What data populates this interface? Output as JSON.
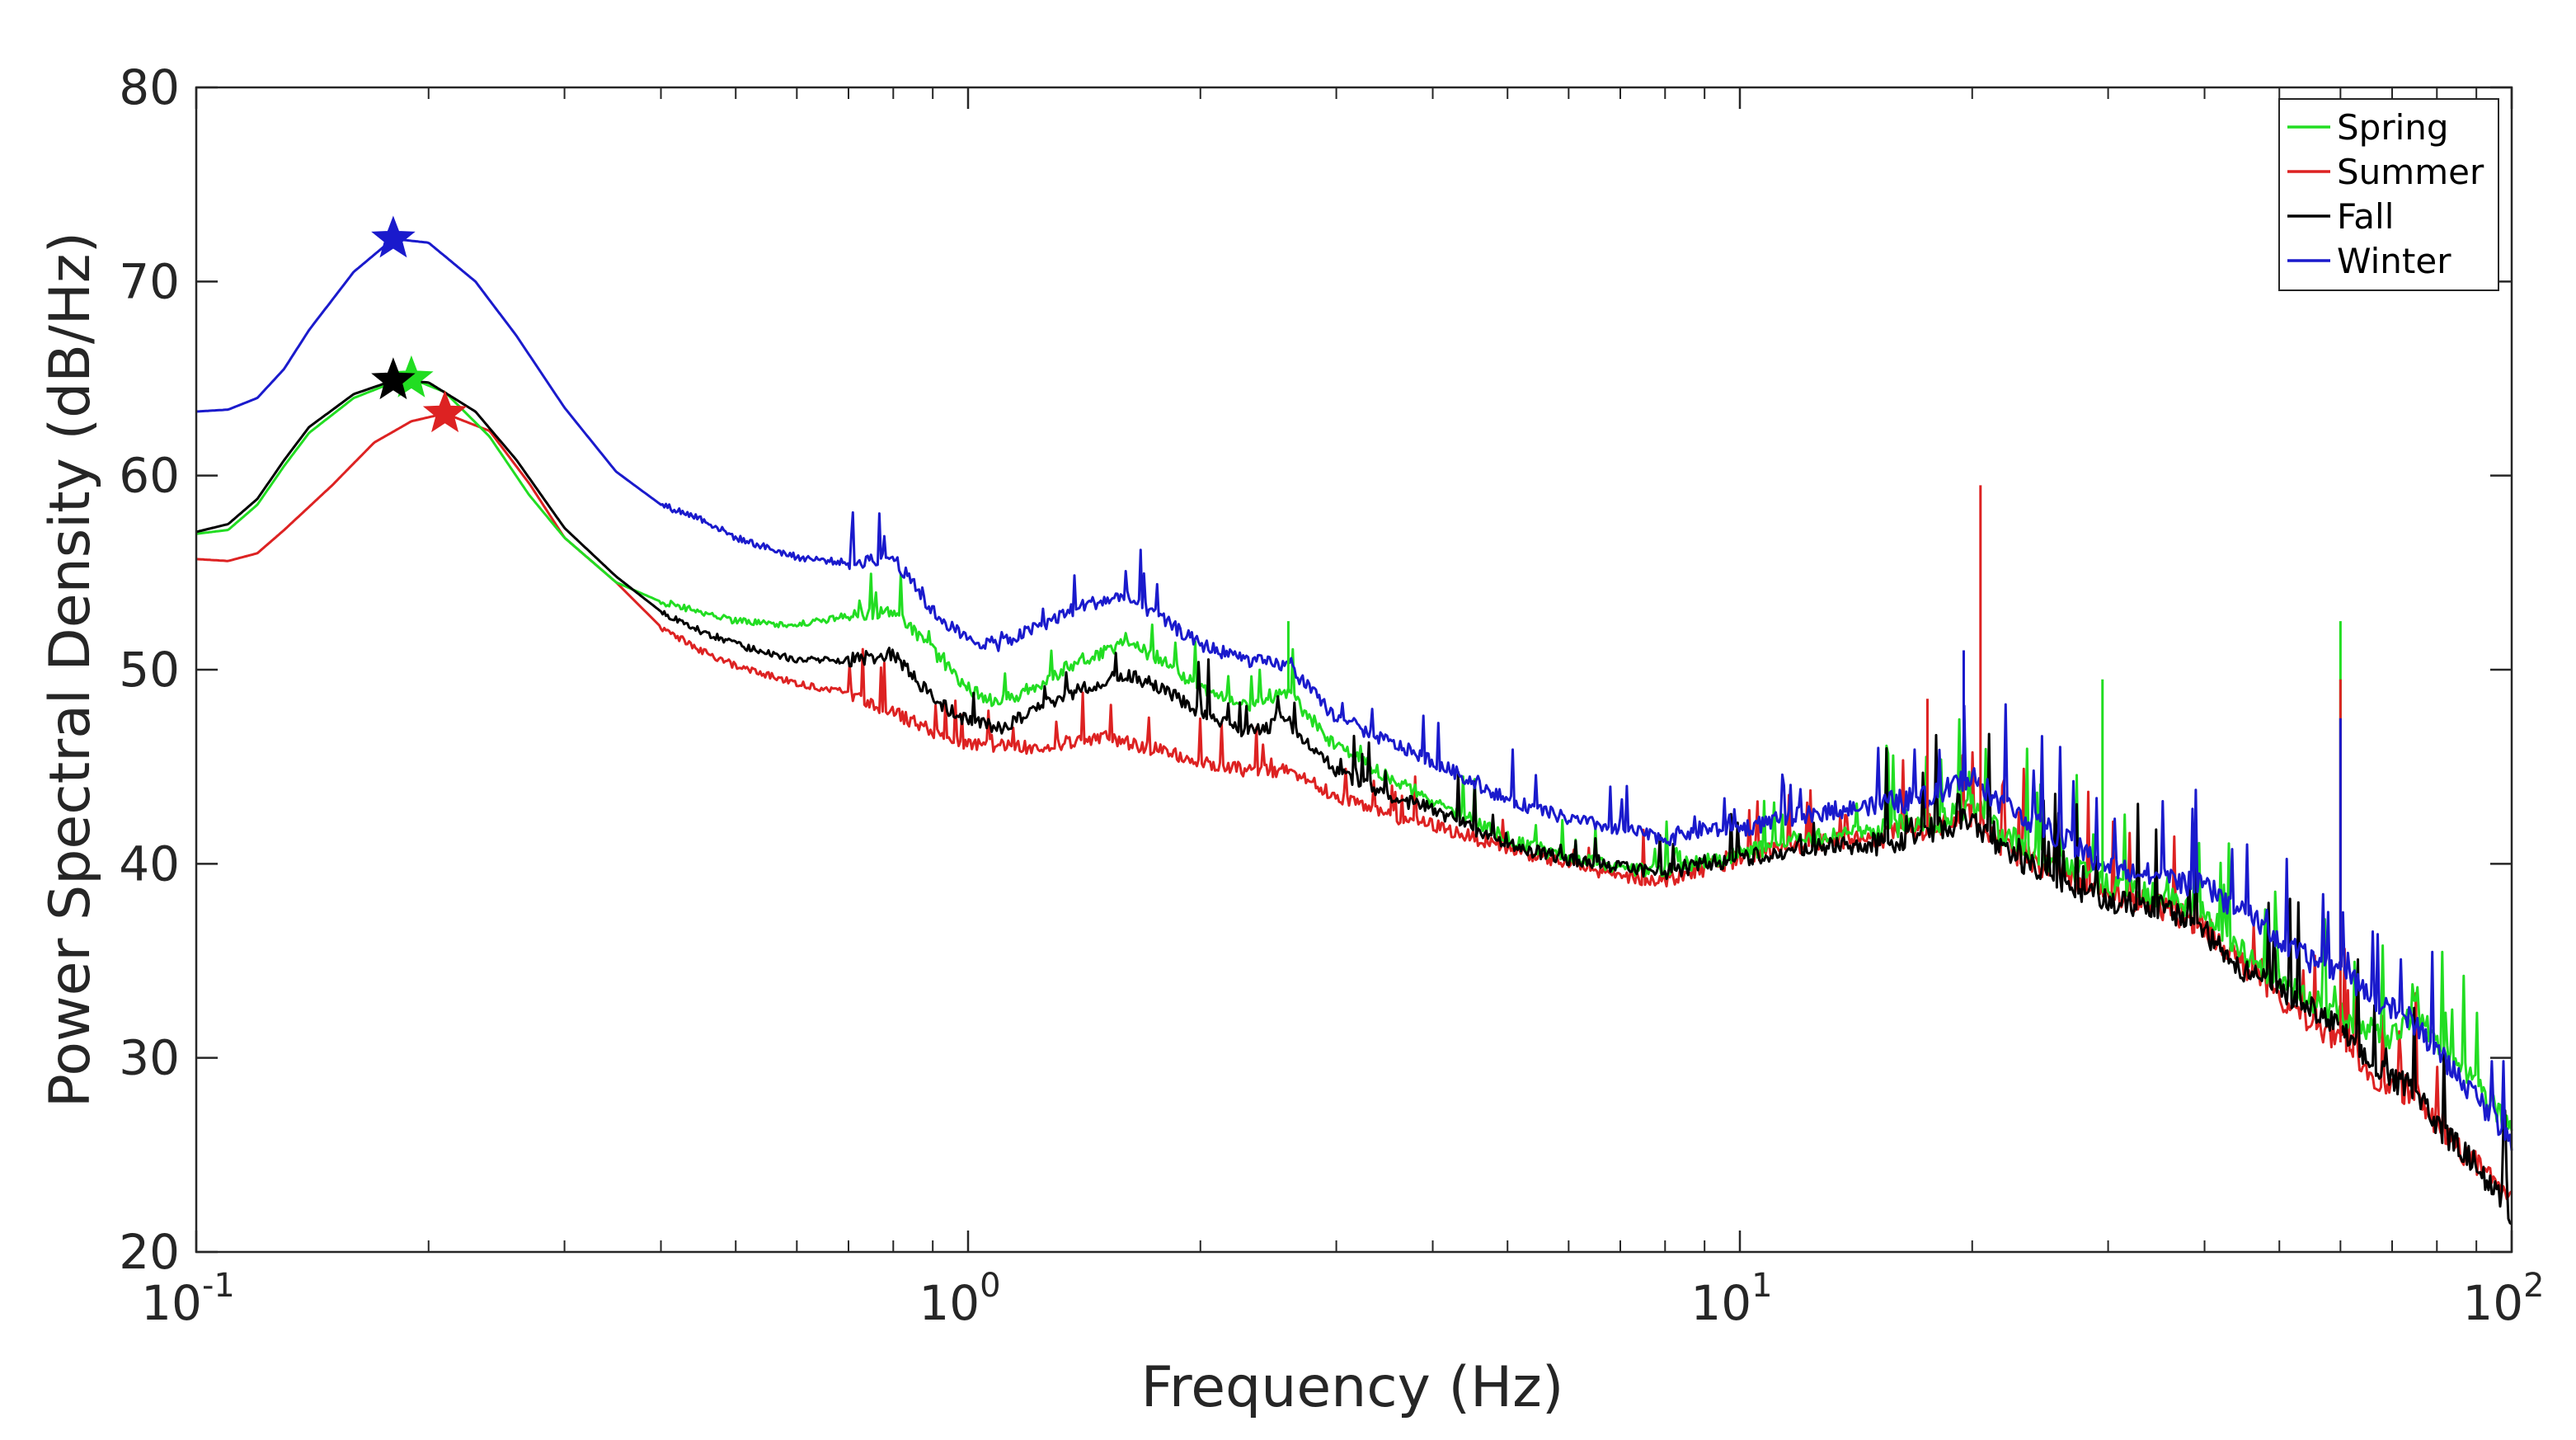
{
  "chart_data": {
    "type": "line",
    "xscale": "log",
    "xlabel": "Frequency (Hz)",
    "ylabel": "Power Spectral Density (dB/Hz)",
    "xlim": [
      0.1,
      100
    ],
    "ylim": [
      20,
      80
    ],
    "x_ticks": [
      {
        "value": 0.1,
        "base": "10",
        "exp": "-1"
      },
      {
        "value": 1,
        "base": "10",
        "exp": "0"
      },
      {
        "value": 10,
        "base": "10",
        "exp": "1"
      },
      {
        "value": 100,
        "base": "10",
        "exp": "2"
      }
    ],
    "y_ticks": [
      20,
      30,
      40,
      50,
      60,
      70,
      80
    ],
    "legend": {
      "position": "top-right"
    },
    "series": [
      {
        "name": "Spring",
        "color": "#22dd22",
        "peak": {
          "x": 0.19,
          "y": 65.0
        },
        "points": [
          [
            0.1,
            57.0
          ],
          [
            0.11,
            57.2
          ],
          [
            0.12,
            58.5
          ],
          [
            0.13,
            60.5
          ],
          [
            0.14,
            62.2
          ],
          [
            0.16,
            64.0
          ],
          [
            0.18,
            64.8
          ],
          [
            0.19,
            65.0
          ],
          [
            0.21,
            64.3
          ],
          [
            0.24,
            62.0
          ],
          [
            0.27,
            59.0
          ],
          [
            0.3,
            56.8
          ],
          [
            0.35,
            54.5
          ],
          [
            0.4,
            53.5
          ],
          [
            0.45,
            53.0
          ],
          [
            0.5,
            52.5
          ],
          [
            0.6,
            52.3
          ],
          [
            0.7,
            52.8
          ],
          [
            0.8,
            53.0
          ],
          [
            0.9,
            51.0
          ],
          [
            1.0,
            49.0
          ],
          [
            1.1,
            48.3
          ],
          [
            1.2,
            49.0
          ],
          [
            1.4,
            50.5
          ],
          [
            1.6,
            51.3
          ],
          [
            1.8,
            50.5
          ],
          [
            2.0,
            49.0
          ],
          [
            2.3,
            48.2
          ],
          [
            2.6,
            48.8
          ],
          [
            3.0,
            46.0
          ],
          [
            3.5,
            44.5
          ],
          [
            4.0,
            43.3
          ],
          [
            5.0,
            41.3
          ],
          [
            6.0,
            40.3
          ],
          [
            7.0,
            39.8
          ],
          [
            8.0,
            39.6
          ],
          [
            9.0,
            40.2
          ],
          [
            10.0,
            40.5
          ],
          [
            12.0,
            41.3
          ],
          [
            15.0,
            41.8
          ],
          [
            18.0,
            42.2
          ],
          [
            20.0,
            43.0
          ],
          [
            22.0,
            41.5
          ],
          [
            25.0,
            40.3
          ],
          [
            28.0,
            39.5
          ],
          [
            30.0,
            38.8
          ],
          [
            35.0,
            38.3
          ],
          [
            40.0,
            37.5
          ],
          [
            45.0,
            35.5
          ],
          [
            50.0,
            33.8
          ],
          [
            55.0,
            33.0
          ],
          [
            60.0,
            32.3
          ],
          [
            65.0,
            31.5
          ],
          [
            70.0,
            31.0
          ],
          [
            75.0,
            32.5
          ],
          [
            80.0,
            30.8
          ],
          [
            90.0,
            28.5
          ],
          [
            100.0,
            26.5
          ]
        ]
      },
      {
        "name": "Summer",
        "color": "#dd2222",
        "peak": {
          "x": 0.21,
          "y": 63.2
        },
        "points": [
          [
            0.1,
            55.7
          ],
          [
            0.11,
            55.6
          ],
          [
            0.12,
            56.0
          ],
          [
            0.13,
            57.2
          ],
          [
            0.15,
            59.5
          ],
          [
            0.17,
            61.7
          ],
          [
            0.19,
            62.8
          ],
          [
            0.21,
            63.2
          ],
          [
            0.24,
            62.3
          ],
          [
            0.27,
            59.6
          ],
          [
            0.3,
            56.8
          ],
          [
            0.35,
            54.5
          ],
          [
            0.4,
            52.2
          ],
          [
            0.45,
            51.0
          ],
          [
            0.5,
            50.2
          ],
          [
            0.6,
            49.3
          ],
          [
            0.7,
            48.8
          ],
          [
            0.8,
            47.8
          ],
          [
            0.9,
            46.8
          ],
          [
            1.0,
            46.2
          ],
          [
            1.2,
            46.0
          ],
          [
            1.5,
            46.5
          ],
          [
            1.8,
            45.8
          ],
          [
            2.0,
            45.2
          ],
          [
            2.3,
            44.8
          ],
          [
            2.6,
            44.8
          ],
          [
            3.0,
            43.5
          ],
          [
            3.5,
            42.5
          ],
          [
            4.0,
            42.0
          ],
          [
            5.0,
            40.8
          ],
          [
            6.0,
            40.0
          ],
          [
            7.0,
            39.3
          ],
          [
            8.0,
            39.2
          ],
          [
            9.0,
            39.8
          ],
          [
            10.0,
            40.3
          ],
          [
            12.0,
            41.0
          ],
          [
            15.0,
            41.3
          ],
          [
            18.0,
            42.0
          ],
          [
            20.0,
            42.5
          ],
          [
            22.0,
            40.8
          ],
          [
            25.0,
            39.8
          ],
          [
            28.0,
            39.0
          ],
          [
            30.0,
            38.5
          ],
          [
            35.0,
            37.8
          ],
          [
            40.0,
            36.8
          ],
          [
            45.0,
            34.8
          ],
          [
            50.0,
            33.0
          ],
          [
            55.0,
            31.8
          ],
          [
            60.0,
            30.8
          ],
          [
            65.0,
            29.3
          ],
          [
            70.0,
            28.5
          ],
          [
            75.0,
            28.0
          ],
          [
            80.0,
            26.5
          ],
          [
            90.0,
            24.5
          ],
          [
            100.0,
            22.5
          ]
        ]
      },
      {
        "name": "Fall",
        "color": "#000000",
        "peak": {
          "x": 0.18,
          "y": 64.9
        },
        "points": [
          [
            0.1,
            57.1
          ],
          [
            0.11,
            57.5
          ],
          [
            0.12,
            58.8
          ],
          [
            0.13,
            60.8
          ],
          [
            0.14,
            62.5
          ],
          [
            0.16,
            64.2
          ],
          [
            0.18,
            64.9
          ],
          [
            0.2,
            64.8
          ],
          [
            0.23,
            63.3
          ],
          [
            0.26,
            60.8
          ],
          [
            0.3,
            57.3
          ],
          [
            0.35,
            54.8
          ],
          [
            0.4,
            53.0
          ],
          [
            0.45,
            52.0
          ],
          [
            0.5,
            51.3
          ],
          [
            0.6,
            50.5
          ],
          [
            0.7,
            50.5
          ],
          [
            0.8,
            50.8
          ],
          [
            0.9,
            48.5
          ],
          [
            1.0,
            47.3
          ],
          [
            1.1,
            47.0
          ],
          [
            1.2,
            47.8
          ],
          [
            1.4,
            49.0
          ],
          [
            1.6,
            49.8
          ],
          [
            1.8,
            49.0
          ],
          [
            2.0,
            47.8
          ],
          [
            2.3,
            46.8
          ],
          [
            2.6,
            47.3
          ],
          [
            3.0,
            44.8
          ],
          [
            3.5,
            43.5
          ],
          [
            4.0,
            42.8
          ],
          [
            5.0,
            41.0
          ],
          [
            6.0,
            40.2
          ],
          [
            7.0,
            39.8
          ],
          [
            8.0,
            39.6
          ],
          [
            9.0,
            40.0
          ],
          [
            10.0,
            40.3
          ],
          [
            12.0,
            40.8
          ],
          [
            15.0,
            41.0
          ],
          [
            18.0,
            41.8
          ],
          [
            20.0,
            42.3
          ],
          [
            22.0,
            40.5
          ],
          [
            25.0,
            39.5
          ],
          [
            28.0,
            38.5
          ],
          [
            30.0,
            38.0
          ],
          [
            35.0,
            37.8
          ],
          [
            40.0,
            36.5
          ],
          [
            45.0,
            34.5
          ],
          [
            50.0,
            33.5
          ],
          [
            55.0,
            32.5
          ],
          [
            60.0,
            31.5
          ],
          [
            65.0,
            29.8
          ],
          [
            70.0,
            28.8
          ],
          [
            75.0,
            28.5
          ],
          [
            80.0,
            26.5
          ],
          [
            90.0,
            24.5
          ],
          [
            100.0,
            21.8
          ]
        ]
      },
      {
        "name": "Winter",
        "color": "#1a1acc",
        "peak": {
          "x": 0.18,
          "y": 72.2
        },
        "points": [
          [
            0.1,
            63.3
          ],
          [
            0.11,
            63.4
          ],
          [
            0.12,
            64.0
          ],
          [
            0.13,
            65.5
          ],
          [
            0.14,
            67.5
          ],
          [
            0.16,
            70.5
          ],
          [
            0.18,
            72.2
          ],
          [
            0.2,
            72.0
          ],
          [
            0.23,
            70.0
          ],
          [
            0.26,
            67.2
          ],
          [
            0.3,
            63.5
          ],
          [
            0.35,
            60.2
          ],
          [
            0.4,
            58.5
          ],
          [
            0.45,
            57.8
          ],
          [
            0.5,
            56.8
          ],
          [
            0.6,
            55.8
          ],
          [
            0.7,
            55.5
          ],
          [
            0.8,
            55.8
          ],
          [
            0.9,
            53.0
          ],
          [
            1.0,
            51.5
          ],
          [
            1.1,
            51.3
          ],
          [
            1.2,
            52.0
          ],
          [
            1.4,
            53.3
          ],
          [
            1.6,
            53.8
          ],
          [
            1.8,
            52.5
          ],
          [
            2.0,
            51.3
          ],
          [
            2.3,
            50.5
          ],
          [
            2.6,
            50.2
          ],
          [
            3.0,
            47.5
          ],
          [
            3.5,
            46.3
          ],
          [
            4.0,
            45.3
          ],
          [
            5.0,
            43.3
          ],
          [
            6.0,
            42.3
          ],
          [
            7.0,
            41.8
          ],
          [
            8.0,
            41.3
          ],
          [
            9.0,
            41.8
          ],
          [
            10.0,
            41.8
          ],
          [
            12.0,
            42.5
          ],
          [
            15.0,
            43.0
          ],
          [
            18.0,
            43.5
          ],
          [
            20.0,
            44.5
          ],
          [
            22.0,
            43.0
          ],
          [
            25.0,
            41.8
          ],
          [
            28.0,
            40.5
          ],
          [
            30.0,
            39.8
          ],
          [
            35.0,
            39.3
          ],
          [
            40.0,
            38.8
          ],
          [
            45.0,
            37.5
          ],
          [
            50.0,
            36.0
          ],
          [
            55.0,
            35.0
          ],
          [
            60.0,
            34.5
          ],
          [
            65.0,
            33.3
          ],
          [
            70.0,
            32.5
          ],
          [
            75.0,
            31.8
          ],
          [
            80.0,
            30.3
          ],
          [
            90.0,
            28.0
          ],
          [
            100.0,
            25.8
          ]
        ]
      }
    ],
    "spikes": [
      {
        "x": 20.5,
        "series": "Summer",
        "y": 59.5
      },
      {
        "x": 60.0,
        "series": "Spring",
        "y": 52.5
      },
      {
        "x": 60.0,
        "series": "Summer",
        "y": 49.5
      },
      {
        "x": 60.0,
        "series": "Winter",
        "y": 47.5
      },
      {
        "x": 19.5,
        "series": "Winter",
        "y": 51.0
      },
      {
        "x": 17.5,
        "series": "Summer",
        "y": 48.5
      },
      {
        "x": 29.5,
        "series": "Spring",
        "y": 49.5
      },
      {
        "x": 2.6,
        "series": "Spring",
        "y": 52.5
      }
    ]
  }
}
